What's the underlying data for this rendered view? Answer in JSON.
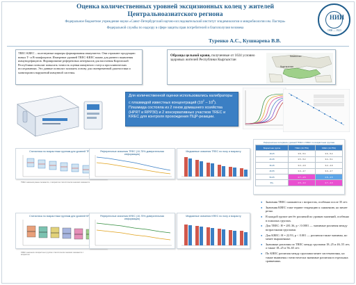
{
  "header": {
    "title_line1": "Оценка количественных уровней эксцизионных колец у жителей",
    "title_line2": "Центральноазиатского региона",
    "affiliation_line1": "Федеральное бюджетное учреждение науки «Санкт-Петербургский научно-исследовательский институт эпидемиологии и микробиологии им. Пастера»",
    "affiliation_line2": "Федеральной службы по надзору в сфере защиты прав потребителей и благополучия человека",
    "authors": "Туренко А.С., Кушнарева В.В."
  },
  "logo": {
    "mark": "НИИ",
    "year": "1908 — 1923"
  },
  "intro": {
    "text": "TREC-KREC – полезнувные маркеры формирования иммунитета. Они отражают продукцию новых Т- и В-лимфоцитов. Измерение уровней TREC-KREC важно для раннего выявления иммунодефицитов. Формирование референсных интервалов для населения Киргизской Республики позволит повысить точность оценки иммунного статуса при клинических исследованиях. Это данные позволят заложить основу для своевременной диагностики и мониторинга нарушений иммунной системы."
  },
  "sample": {
    "text_bold": "Образцы цельной крови,",
    "text_rest": " полученные от 1024 условно здоровых жителей Республики Кыргызстан",
    "map_label_top": "Казахстан",
    "map_label_center": "Кыргызстан"
  },
  "callout": {
    "part1": "Для количественной оценки использовались калибраторы с плазмидой известных концентраций (10",
    "exp1": "2",
    "part2": " – 10",
    "exp2": "6",
    "part3": "). Плазмида состояла из 2 генов домашнего хозяйства (HPRT и RPP30) и 2 консервативных участков TREC и KREC для контроля прохождения ПЦР-реакции."
  },
  "charts": {
    "c1": "Статистика по возрастным группам для уровней TREC",
    "c2": "Референсные значения TREC (10-75% доверительная информация)",
    "c3": "Медианные значения TREC по полу и возрасту",
    "c4": "Статистика по возрастным группам для уровней KREC",
    "c5": "Референсные значения KREC (10-75% доверительная информация)",
    "c6": "Медианные значения KREC по полу и возрасту",
    "note1": "TREC значения ранее снижаются, с возрастом статистически значимо снижаются",
    "note2": "KREC значения в возрастных группах статистически значимо снижаются с возрастом"
  },
  "table": {
    "title": "Референсные интервалы уровней TREC и KREC по возрастным группам",
    "headers": [
      "Возрастная группа",
      "TREC (10-75%)",
      "KREC (10-75%)"
    ],
    "rows": [
      [
        "18-25",
        "3.8 – 5.4",
        "3.6 – 5.2"
      ],
      [
        "26-35",
        "3.5 – 5.2",
        "3.4 – 5.1"
      ],
      [
        "36-45",
        "3.3 – 4.9",
        "3.2 – 4.9"
      ],
      [
        "46-55",
        "3.0 – 4.7",
        "3.0 – 4.7"
      ],
      [
        "56-65",
        "2.7 – 4.5",
        "2.8 – 4.5"
      ],
      [
        "66+",
        "2.5 – 4.3",
        "2.7 – 4.3"
      ]
    ]
  },
  "bullets": [
    "Значения TREC снижаются с возрастом, особенно после 35 лет.",
    "Значения KREC тоже теряют тенденцию к снижению, но менее резко.",
    "В каждой группе нет/ёт различий по уровню значений, особенно в пожилых группах.",
    "Для TREC: H = 281.36, p < 0.0001 — значимые различия между возрастными группами.",
    "Для KREC: H = 22.93, p < 0.001 — различия также значимы, но менее выраженные.",
    "Значимые различия по TREC между группами 18–25 и 46–55 лет, а также 18–25 и 56–65 лет.",
    "По KREC различия между группами менее систематичны, но также выявлены статистически значимые различия в отдельных сравнениях."
  ],
  "colors": {
    "title": "#1f5d8c",
    "accent": "#3b7fc4",
    "callout_bg": "#3b7fc4",
    "bullet": "#2e7cc6",
    "highlight_pink": "#e94fd0",
    "highlight_blue": "#5ca4e8"
  }
}
